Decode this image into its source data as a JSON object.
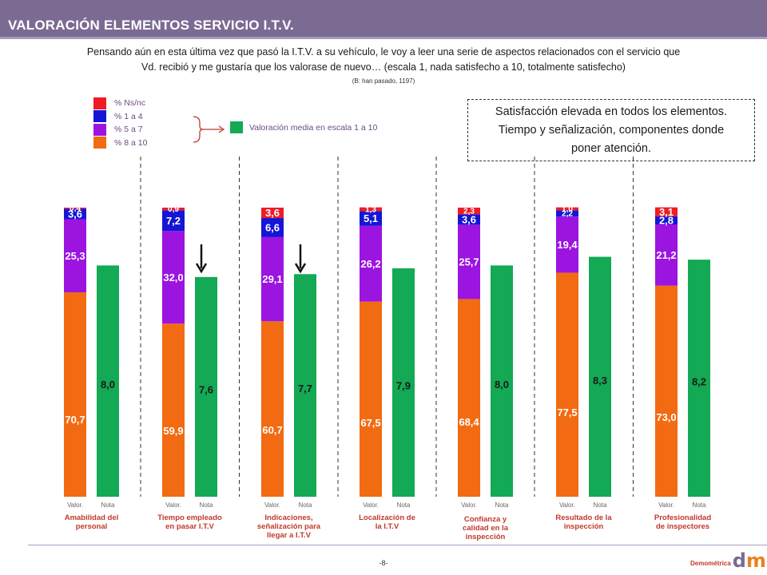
{
  "header": {
    "title": "VALORACIÓN ELEMENTOS SERVICIO I.T.V."
  },
  "question": {
    "line1": "Pensando aún en esta última vez que pasó la I.T.V. a su vehículo, le voy a leer una serie de aspectos relacionados con el servicio que",
    "line2": "Vd. recibió y me gustaría que los valorase de nuevo… (escala 1, nada satisfecho a 10, totalmente satisfecho)",
    "base": "(B: han pasado, 1197)"
  },
  "legend": {
    "items": [
      {
        "label": "% Ns/nc",
        "color": "#ee1c25"
      },
      {
        "label": "% 1 a 4",
        "color": "#1515d6"
      },
      {
        "label": "% 5 a 7",
        "color": "#9b14e0"
      },
      {
        "label": "% 8 a 10",
        "color": "#f26b12"
      }
    ],
    "mean_label": "Valoración media en escala 1 a 10",
    "mean_color": "#13a955"
  },
  "callout": {
    "line1": "Satisfacción elevada en todos los elementos.",
    "line2": "Tiempo y señalización, componentes donde",
    "line3": "poner atención."
  },
  "chart_data": {
    "type": "bar",
    "stacked_series": [
      {
        "name": "% 8 a 10",
        "color": "#f26b12",
        "values": [
          70.7,
          59.9,
          60.7,
          67.5,
          68.4,
          77.5,
          73.0
        ],
        "labels": [
          "70,7",
          "59,9",
          "60,7",
          "67,5",
          "68,4",
          "77,5",
          "73,0"
        ]
      },
      {
        "name": "% 5 a 7",
        "color": "#9b14e0",
        "values": [
          25.3,
          32.0,
          29.1,
          26.2,
          25.7,
          19.4,
          21.2
        ],
        "labels": [
          "25,3",
          "32,0",
          "29,1",
          "26,2",
          "25,7",
          "19,4",
          "21,2"
        ]
      },
      {
        "name": "% 1 a 4",
        "color": "#1515d6",
        "values": [
          3.6,
          7.2,
          6.6,
          5.1,
          3.6,
          2.2,
          2.8
        ],
        "labels": [
          "3,6",
          "7,2",
          "6,6",
          "5,1",
          "3,6",
          "2,2",
          "2,8"
        ]
      },
      {
        "name": "% Ns/nc",
        "color": "#ee1c25",
        "values": [
          0.4,
          0.9,
          3.6,
          1.3,
          2.3,
          1.0,
          3.1
        ],
        "labels": [
          "0,4",
          "0,9",
          "3,6",
          "1,3",
          "2,3",
          "1,0",
          "3,1"
        ]
      }
    ],
    "mean_series": {
      "name": "Valoración media en escala 1 a 10",
      "color": "#13a955",
      "values": [
        8.0,
        7.6,
        7.7,
        7.9,
        8.0,
        8.3,
        8.2
      ],
      "labels": [
        "8,0",
        "7,6",
        "7,7",
        "7,9",
        "8,0",
        "8,3",
        "8,2"
      ],
      "ylim": [
        0,
        10
      ]
    },
    "stack_ylim": [
      0,
      100
    ],
    "categories": [
      [
        "Amabilidad del",
        "personal"
      ],
      [
        "Tiempo empleado",
        "en pasar I.T.V"
      ],
      [
        "Indicaciones,",
        "señalización para",
        "llegar a I.T.V"
      ],
      [
        "Localización de",
        "la I.T.V"
      ],
      [
        "Confianza y",
        "calidad en la",
        "inspección"
      ],
      [
        "Resultado de la",
        "inspección"
      ],
      [
        "Profesionalidad",
        "de inspectores"
      ]
    ],
    "bar_labels": {
      "stack": "Valor.",
      "mean": "Nota"
    },
    "highlighted": [
      1,
      2
    ],
    "category_color": "#c0392b"
  },
  "footer": {
    "page": "-8-",
    "brand": "Demométrica"
  }
}
